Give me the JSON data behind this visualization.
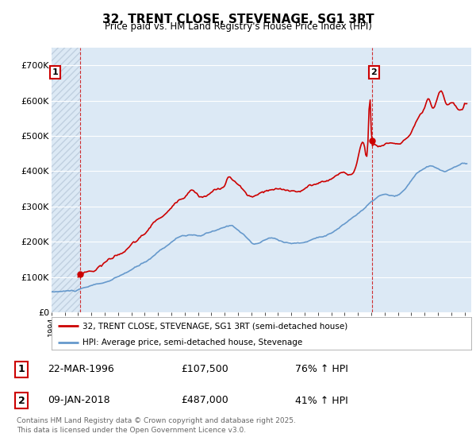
{
  "title": "32, TRENT CLOSE, STEVENAGE, SG1 3RT",
  "subtitle": "Price paid vs. HM Land Registry's House Price Index (HPI)",
  "ylim": [
    0,
    750000
  ],
  "yticks": [
    0,
    100000,
    200000,
    300000,
    400000,
    500000,
    600000,
    700000
  ],
  "ytick_labels": [
    "£0",
    "£100K",
    "£200K",
    "£300K",
    "£400K",
    "£500K",
    "£600K",
    "£700K"
  ],
  "background_color": "#ffffff",
  "plot_bg_color": "#dce9f5",
  "grid_color": "#ffffff",
  "hatch_color": "#c0d0e0",
  "red_line_color": "#cc0000",
  "blue_line_color": "#6699cc",
  "marker1_date": 1996.15,
  "marker1_price": 107500,
  "marker2_date": 2018.03,
  "marker2_price": 487000,
  "vline_color": "#cc0000",
  "legend_label_red": "32, TRENT CLOSE, STEVENAGE, SG1 3RT (semi-detached house)",
  "legend_label_blue": "HPI: Average price, semi-detached house, Stevenage",
  "table_data": [
    [
      "1",
      "22-MAR-1996",
      "£107,500",
      "76% ↑ HPI"
    ],
    [
      "2",
      "09-JAN-2018",
      "£487,000",
      "41% ↑ HPI"
    ]
  ],
  "footer": "Contains HM Land Registry data © Crown copyright and database right 2025.\nThis data is licensed under the Open Government Licence v3.0.",
  "xlim": [
    1994.0,
    2025.5
  ],
  "xticks": [
    1994,
    1995,
    1996,
    1997,
    1998,
    1999,
    2000,
    2001,
    2002,
    2003,
    2004,
    2005,
    2006,
    2007,
    2008,
    2009,
    2010,
    2011,
    2012,
    2013,
    2014,
    2015,
    2016,
    2017,
    2018,
    2019,
    2020,
    2021,
    2022,
    2023,
    2024,
    2025
  ]
}
